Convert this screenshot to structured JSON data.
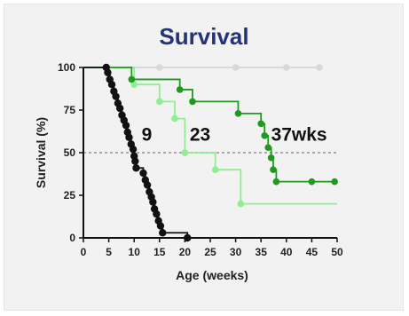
{
  "chart_data": {
    "type": "line",
    "title": "Survival",
    "xlabel": "Age (weeks)",
    "ylabel": "Survival (%)",
    "xlim": [
      0,
      50
    ],
    "ylim": [
      0,
      100
    ],
    "xticks": [
      0,
      5,
      10,
      15,
      20,
      25,
      30,
      35,
      40,
      45,
      50
    ],
    "yticks": [
      0,
      25,
      50,
      75,
      100
    ],
    "reference_line": {
      "y": 50,
      "style": "dotted",
      "color": "#aaaaaa"
    },
    "series": [
      {
        "color": "#111111",
        "step": true,
        "steps": [
          [
            0,
            100
          ],
          [
            4.5,
            100
          ],
          [
            4.8,
            97
          ],
          [
            5.2,
            93
          ],
          [
            5.6,
            90
          ],
          [
            6.0,
            86
          ],
          [
            6.4,
            83
          ],
          [
            6.8,
            79
          ],
          [
            7.2,
            76
          ],
          [
            7.6,
            72
          ],
          [
            8.0,
            69
          ],
          [
            8.4,
            66
          ],
          [
            8.7,
            62
          ],
          [
            9.0,
            59
          ],
          [
            9.4,
            55
          ],
          [
            9.8,
            52
          ],
          [
            10.0,
            48
          ],
          [
            10.2,
            45
          ],
          [
            10.4,
            41
          ],
          [
            11.5,
            41
          ],
          [
            11.8,
            38
          ],
          [
            12.2,
            34
          ],
          [
            12.6,
            31
          ],
          [
            13.0,
            27
          ],
          [
            13.4,
            24
          ],
          [
            13.7,
            21
          ],
          [
            14.0,
            17
          ],
          [
            14.4,
            14
          ],
          [
            14.8,
            10
          ],
          [
            15.2,
            7
          ],
          [
            15.6,
            3
          ],
          [
            20.5,
            0
          ]
        ],
        "markers": [
          [
            4.5,
            100
          ],
          [
            4.8,
            97
          ],
          [
            5.2,
            93
          ],
          [
            5.6,
            90
          ],
          [
            6.0,
            86
          ],
          [
            6.4,
            83
          ],
          [
            6.8,
            79
          ],
          [
            7.2,
            76
          ],
          [
            7.6,
            72
          ],
          [
            8.0,
            69
          ],
          [
            8.4,
            66
          ],
          [
            8.7,
            62
          ],
          [
            9.0,
            59
          ],
          [
            9.4,
            55
          ],
          [
            9.8,
            52
          ],
          [
            10.0,
            48
          ],
          [
            10.2,
            45
          ],
          [
            10.4,
            41
          ],
          [
            11.8,
            38
          ],
          [
            12.2,
            34
          ],
          [
            12.6,
            31
          ],
          [
            13.0,
            27
          ],
          [
            13.4,
            24
          ],
          [
            13.7,
            21
          ],
          [
            14.0,
            17
          ],
          [
            14.4,
            14
          ],
          [
            14.8,
            10
          ],
          [
            15.2,
            7
          ],
          [
            15.6,
            3
          ],
          [
            20.5,
            0
          ]
        ]
      },
      {
        "color": "#90ee90",
        "step": true,
        "steps": [
          [
            0,
            100
          ],
          [
            10,
            100
          ],
          [
            10,
            90
          ],
          [
            15,
            90
          ],
          [
            15,
            80
          ],
          [
            18,
            80
          ],
          [
            18,
            70
          ],
          [
            20,
            70
          ],
          [
            20,
            50
          ],
          [
            26,
            50
          ],
          [
            26,
            40
          ],
          [
            31,
            40
          ],
          [
            31,
            20
          ],
          [
            50,
            20
          ]
        ],
        "markers": [
          [
            10,
            90
          ],
          [
            15,
            80
          ],
          [
            18,
            70
          ],
          [
            20,
            50
          ],
          [
            26,
            40
          ],
          [
            31,
            20
          ]
        ]
      },
      {
        "color": "#1f9a1f",
        "step": true,
        "steps": [
          [
            0,
            100
          ],
          [
            9.5,
            100
          ],
          [
            9.5,
            93
          ],
          [
            19,
            93
          ],
          [
            19,
            87
          ],
          [
            21.5,
            87
          ],
          [
            21.5,
            80
          ],
          [
            30.5,
            80
          ],
          [
            30.5,
            73
          ],
          [
            35,
            73
          ],
          [
            35,
            67
          ],
          [
            35.7,
            67
          ],
          [
            35.7,
            60
          ],
          [
            36.4,
            60
          ],
          [
            36.4,
            53
          ],
          [
            37,
            53
          ],
          [
            37,
            47
          ],
          [
            37.4,
            47
          ],
          [
            37.4,
            40
          ],
          [
            38,
            40
          ],
          [
            38,
            33
          ],
          [
            49.5,
            33
          ]
        ],
        "markers": [
          [
            9.5,
            93
          ],
          [
            19,
            87
          ],
          [
            21.5,
            80
          ],
          [
            30.5,
            73
          ],
          [
            35,
            67
          ],
          [
            35.7,
            60
          ],
          [
            36.4,
            53
          ],
          [
            37,
            47
          ],
          [
            37.4,
            40
          ],
          [
            38,
            33
          ],
          [
            45,
            33
          ],
          [
            49.5,
            33
          ]
        ]
      },
      {
        "color": "#d8d8d8",
        "step": false,
        "steps": [
          [
            0,
            100
          ],
          [
            46.5,
            100
          ]
        ],
        "markers": [
          [
            15,
            100
          ],
          [
            30,
            100
          ],
          [
            40,
            100
          ],
          [
            46.5,
            100
          ]
        ]
      }
    ],
    "annotations": [
      {
        "text": "9",
        "x": 12.5,
        "y": 57
      },
      {
        "text": "23",
        "x": 23,
        "y": 57
      },
      {
        "text": "37wks",
        "x": 42.5,
        "y": 57
      }
    ]
  }
}
